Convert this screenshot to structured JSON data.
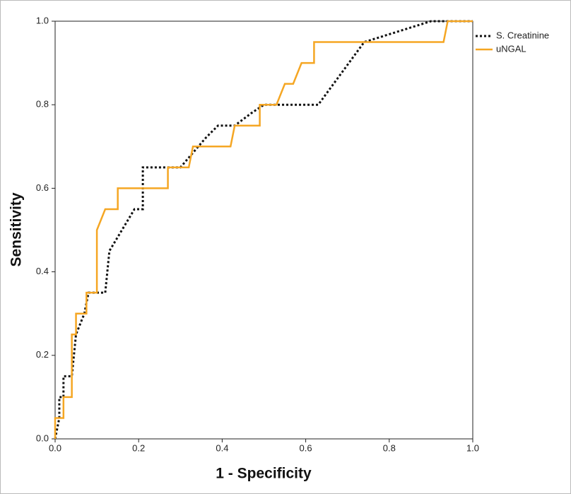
{
  "chart_data": {
    "type": "line",
    "x_label": "1 - Specificity",
    "y_label": "Sensitivity",
    "xlim": [
      0,
      1
    ],
    "ylim": [
      0,
      1
    ],
    "xticks": [
      {
        "value": 0,
        "label": "0.0"
      },
      {
        "value": 0.2,
        "label": "0.2"
      },
      {
        "value": 0.4,
        "label": "0.4"
      },
      {
        "value": 0.6,
        "label": "0.6"
      },
      {
        "value": 0.8,
        "label": "0.8"
      },
      {
        "value": 1,
        "label": "1.0"
      }
    ],
    "yticks": [
      {
        "value": 0,
        "label": "0.0"
      },
      {
        "value": 0.2,
        "label": "0.2"
      },
      {
        "value": 0.4,
        "label": "0.4"
      },
      {
        "value": 0.6,
        "label": "0.6"
      },
      {
        "value": 0.8,
        "label": "0.8"
      },
      {
        "value": 1,
        "label": "1.0"
      }
    ],
    "legend": "top-right",
    "series": [
      {
        "name": "S. Creatinine",
        "color": "#111111",
        "line_style": "dotted",
        "x": [
          0,
          0.01,
          0.01,
          0.02,
          0.02,
          0.04,
          0.05,
          0.07,
          0.08,
          0.12,
          0.13,
          0.19,
          0.21,
          0.21,
          0.3,
          0.36,
          0.39,
          0.43,
          0.47,
          0.5,
          0.63,
          0.74,
          0.9,
          1.0
        ],
        "values": [
          0,
          0.05,
          0.1,
          0.1,
          0.15,
          0.15,
          0.25,
          0.3,
          0.35,
          0.35,
          0.45,
          0.55,
          0.55,
          0.65,
          0.65,
          0.72,
          0.75,
          0.75,
          0.78,
          0.8,
          0.8,
          0.95,
          1.0,
          1.0
        ]
      },
      {
        "name": "uNGAL",
        "color": "#f5a623",
        "line_style": "solid",
        "x": [
          0,
          0,
          0.02,
          0.02,
          0.04,
          0.04,
          0.05,
          0.05,
          0.075,
          0.075,
          0.1,
          0.1,
          0.12,
          0.15,
          0.15,
          0.27,
          0.27,
          0.32,
          0.33,
          0.42,
          0.43,
          0.49,
          0.49,
          0.53,
          0.55,
          0.57,
          0.59,
          0.62,
          0.62,
          0.93,
          0.94,
          1.0
        ],
        "values": [
          0,
          0.05,
          0.05,
          0.1,
          0.1,
          0.25,
          0.25,
          0.3,
          0.3,
          0.35,
          0.35,
          0.5,
          0.55,
          0.55,
          0.6,
          0.6,
          0.65,
          0.65,
          0.7,
          0.7,
          0.75,
          0.75,
          0.8,
          0.8,
          0.85,
          0.85,
          0.9,
          0.9,
          0.95,
          0.95,
          1.0,
          1.0
        ]
      }
    ]
  }
}
